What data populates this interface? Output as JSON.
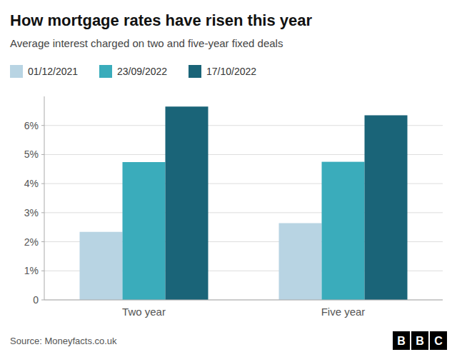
{
  "chart_data": {
    "type": "bar",
    "title": "How mortgage rates have risen this year",
    "subtitle": "Average interest charged on two and five-year fixed deals",
    "source": "Source: Moneyfacts.co.uk",
    "logo": "BBC",
    "categories": [
      "Two year",
      "Five year"
    ],
    "series": [
      {
        "name": "01/12/2021",
        "color": "#b8d4e3",
        "values": [
          2.34,
          2.64
        ]
      },
      {
        "name": "23/09/2022",
        "color": "#3aacbb",
        "values": [
          4.74,
          4.75
        ]
      },
      {
        "name": "17/10/2022",
        "color": "#1a6478",
        "values": [
          6.65,
          6.35
        ]
      }
    ],
    "ylim": [
      0,
      7.0
    ],
    "yticks": [
      0,
      {
        "value": 1,
        "label": "1%"
      },
      {
        "value": 2,
        "label": "2%"
      },
      {
        "value": 3,
        "label": "3%"
      },
      {
        "value": 4,
        "label": "4%"
      },
      {
        "value": 5,
        "label": "5%"
      },
      {
        "value": 6,
        "label": "6%"
      }
    ],
    "grid": true,
    "legend": "top-left"
  }
}
